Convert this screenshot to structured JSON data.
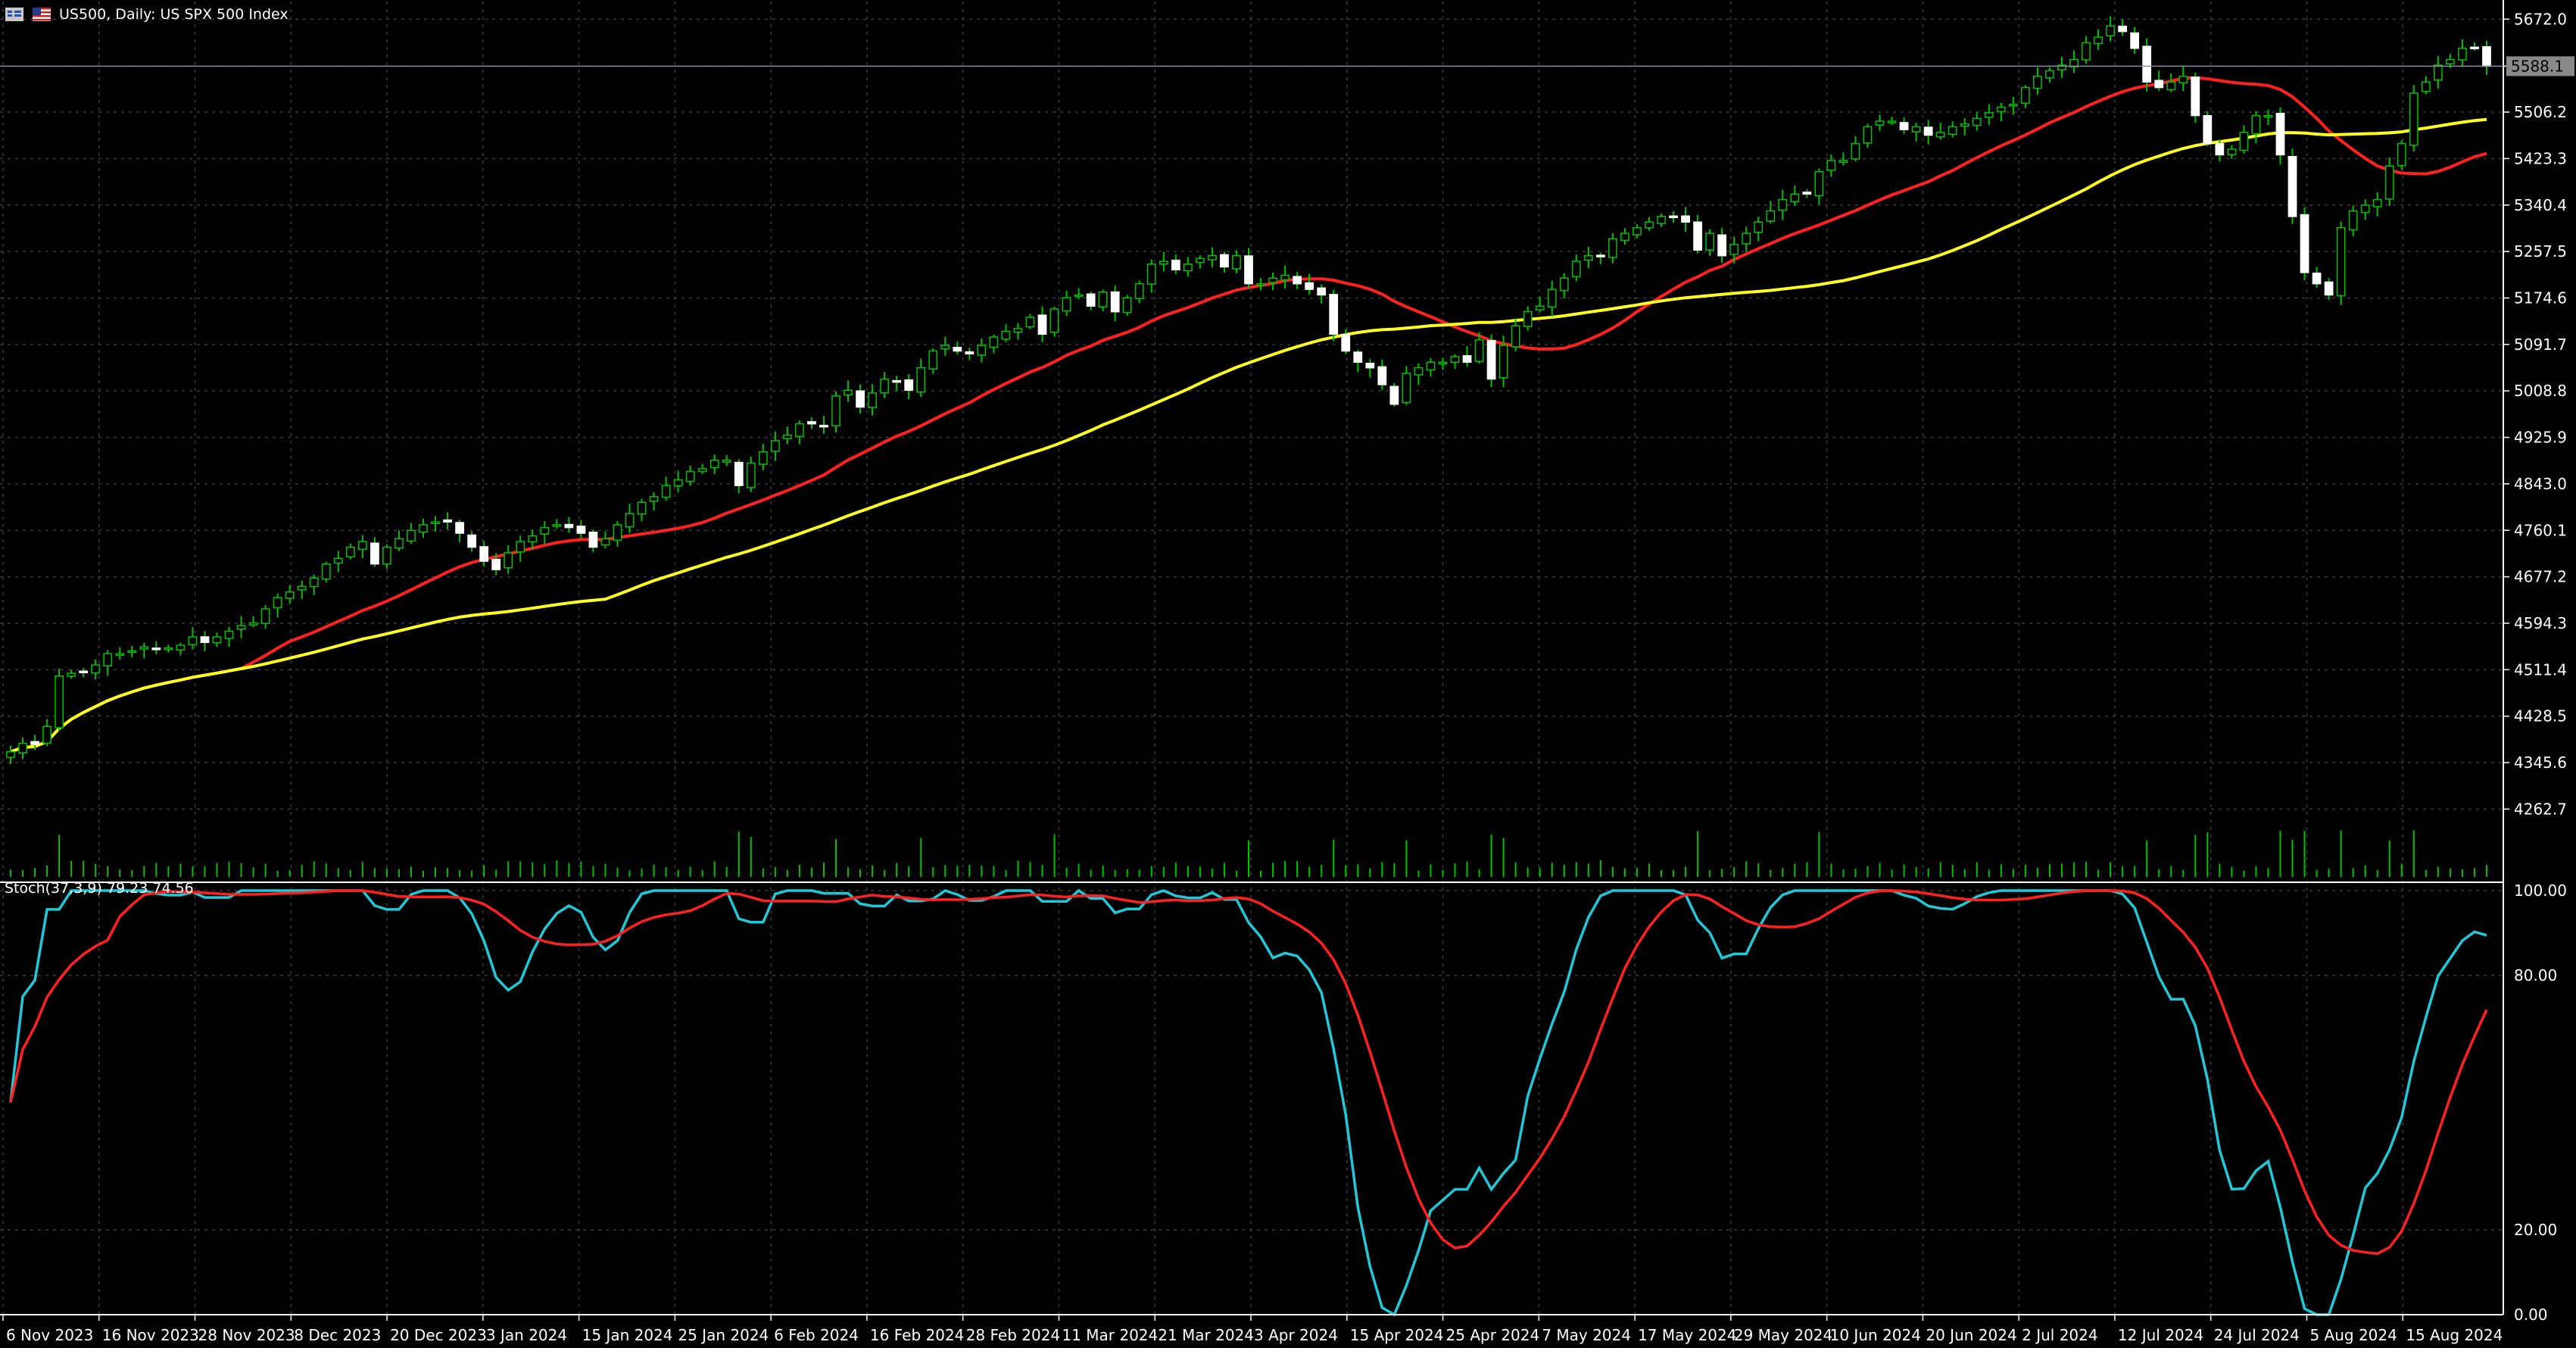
{
  "window": {
    "title": "US500, Daily:  US SPX 500 Index",
    "icons": [
      "chart-menu-icon",
      "flag-icon"
    ]
  },
  "colors": {
    "background": "#000000",
    "grid": "#3a3a3a",
    "axis": "#ffffff",
    "bull_body": "#000000",
    "bull_outline": "#00c000",
    "bear_body": "#ffffff",
    "wick": "#00c000",
    "ma_fast": "#ff2020",
    "ma_slow": "#ffff20",
    "volume": "#00c000",
    "stoch_main": "#20c8d8",
    "stoch_signal": "#ff2020",
    "price_line": "#7f8fa6",
    "price_tag_bg": "#8a8a8a"
  },
  "price_axis": {
    "ticks": [
      "5672.0",
      "5588.1",
      "5506.2",
      "5423.3",
      "5340.4",
      "5257.5",
      "5174.6",
      "5091.7",
      "5008.8",
      "4925.9",
      "4843.0",
      "4760.1",
      "4677.2",
      "4594.3",
      "4511.4",
      "4428.5",
      "4345.6",
      "4262.7"
    ],
    "current_price": "5588.1"
  },
  "stochastic": {
    "label": "Stoch(37,3,9) 79.23 74.56",
    "levels": [
      "100.00",
      "80.00",
      "20.00",
      "0.00"
    ]
  },
  "time_axis": {
    "labels": [
      "6 Nov 2023",
      "16 Nov 2023",
      "28 Nov 2023",
      "8 Dec 2023",
      "20 Dec 2023",
      "3 Jan 2024",
      "15 Jan 2024",
      "25 Jan 2024",
      "6 Feb 2024",
      "16 Feb 2024",
      "28 Feb 2024",
      "11 Mar 2024",
      "21 Mar 2024",
      "3 Apr 2024",
      "15 Apr 2024",
      "25 Apr 2024",
      "7 May 2024",
      "17 May 2024",
      "29 May 2024",
      "10 Jun 2024",
      "20 Jun 2024",
      "2 Jul 2024",
      "12 Jul 2024",
      "24 Jul 2024",
      "5 Aug 2024",
      "15 Aug 2024"
    ]
  },
  "chart_data": {
    "type": "candlestick",
    "symbol": "US500",
    "timeframe": "Daily",
    "y_range": [
      4220,
      5690
    ],
    "closes": [
      4365,
      4380,
      4378,
      4410,
      4500,
      4505,
      4508,
      4520,
      4540,
      4540,
      4545,
      4552,
      4548,
      4550,
      4555,
      4570,
      4560,
      4570,
      4580,
      4590,
      4595,
      4620,
      4640,
      4650,
      4660,
      4675,
      4700,
      4710,
      4730,
      4740,
      4700,
      4730,
      4745,
      4760,
      4770,
      4775,
      4775,
      4755,
      4730,
      4705,
      4690,
      4720,
      4740,
      4750,
      4765,
      4770,
      4765,
      4755,
      4730,
      4745,
      4770,
      4790,
      4810,
      4820,
      4840,
      4850,
      4865,
      4870,
      4885,
      4885,
      4840,
      4880,
      4900,
      4920,
      4930,
      4950,
      4950,
      4945,
      5000,
      5010,
      4980,
      5005,
      5030,
      5025,
      5010,
      5050,
      5080,
      5090,
      5080,
      5075,
      5090,
      5105,
      5115,
      5120,
      5140,
      5110,
      5155,
      5175,
      5180,
      5160,
      5185,
      5150,
      5175,
      5200,
      5235,
      5240,
      5225,
      5235,
      5245,
      5250,
      5230,
      5250,
      5200,
      5200,
      5210,
      5215,
      5200,
      5190,
      5180,
      5110,
      5080,
      5060,
      5050,
      5020,
      4985,
      5040,
      5050,
      5060,
      5060,
      5070,
      5060,
      5100,
      5030,
      5090,
      5125,
      5150,
      5160,
      5190,
      5210,
      5240,
      5250,
      5250,
      5280,
      5290,
      5300,
      5310,
      5320,
      5320,
      5310,
      5260,
      5290,
      5250,
      5270,
      5290,
      5310,
      5330,
      5350,
      5360,
      5360,
      5400,
      5420,
      5420,
      5450,
      5480,
      5490,
      5490,
      5475,
      5480,
      5465,
      5470,
      5480,
      5485,
      5495,
      5505,
      5515,
      5520,
      5550,
      5570,
      5580,
      5590,
      5600,
      5630,
      5640,
      5660,
      5650,
      5620,
      5560,
      5550,
      5560,
      5570,
      5500,
      5450,
      5430,
      5440,
      5470,
      5500,
      5500,
      5430,
      5320,
      5220,
      5200,
      5180,
      5300,
      5330,
      5340,
      5350,
      5410,
      5450,
      5540,
      5560,
      5590,
      5600,
      5620,
      5620,
      5588
    ]
  }
}
